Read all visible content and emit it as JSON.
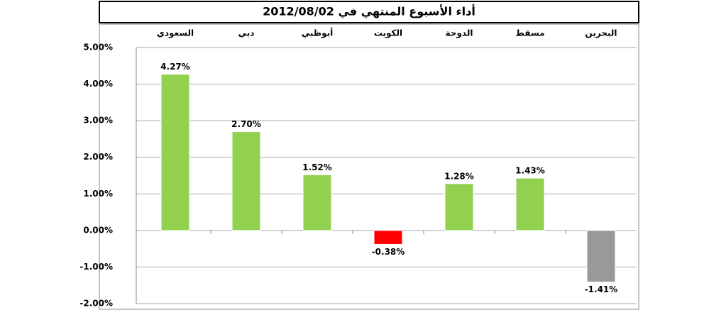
{
  "chart_data": {
    "type": "bar",
    "title": "أداء الأسبوع المنتهي في 2012/08/02",
    "categories": [
      "السعودي",
      "دبي",
      "أبوظبي",
      "الكويت",
      "الدوحة",
      "مسقط",
      "البحرين"
    ],
    "values": [
      4.27,
      2.7,
      1.52,
      -0.38,
      1.28,
      1.43,
      -1.41
    ],
    "value_labels": [
      "4.27%",
      "2.70%",
      "1.52%",
      "-0.38%",
      "1.28%",
      "1.43%",
      "-1.41%"
    ],
    "colors": [
      "#92d050",
      "#92d050",
      "#92d050",
      "#ff0000",
      "#92d050",
      "#92d050",
      "#999999"
    ],
    "ylim": [
      -2,
      5
    ],
    "yticks": [
      {
        "value": -2,
        "label": "-2.00%"
      },
      {
        "value": -1,
        "label": "-1.00%"
      },
      {
        "value": 0,
        "label": "0.00%"
      },
      {
        "value": 1,
        "label": "1.00%"
      },
      {
        "value": 2,
        "label": "2.00%"
      },
      {
        "value": 3,
        "label": "3.00%"
      },
      {
        "value": 4,
        "label": "4.00%"
      },
      {
        "value": 5,
        "label": "5.00%"
      }
    ],
    "grid": true
  }
}
